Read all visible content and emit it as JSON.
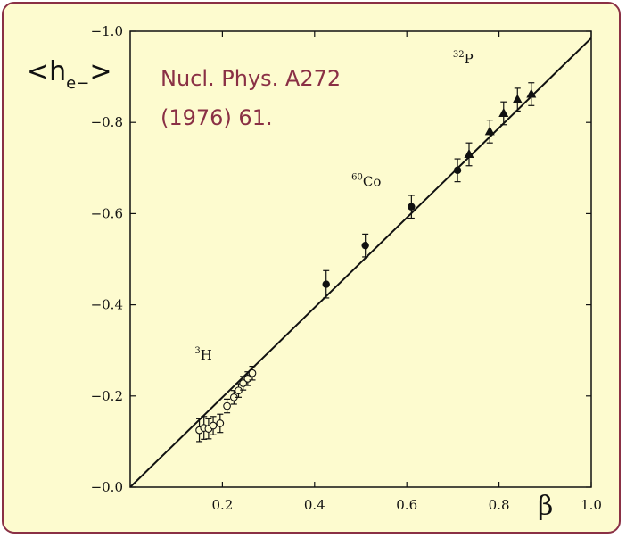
{
  "chart_data": {
    "type": "scatter",
    "xlabel": "β",
    "ylabel": {
      "main": "<h",
      "sub": "e−",
      "close": ">"
    },
    "xlim": [
      0.0,
      1.0
    ],
    "ylim": [
      0.0,
      -1.0
    ],
    "x_ticks": [
      0.2,
      0.4,
      0.6,
      0.8,
      1.0
    ],
    "x_tick_labels": [
      "0.2",
      "0.4",
      "0.6",
      "0.8",
      "1.0"
    ],
    "y_ticks": [
      0.0,
      -0.2,
      -0.4,
      -0.6,
      -0.8,
      -1.0
    ],
    "y_tick_labels": [
      "−0.0",
      "−0.2",
      "−0.4",
      "−0.6",
      "−0.8",
      "−1.0"
    ],
    "annotations": [
      {
        "text": "Nucl. Phys. A272\n(1976) 61."
      },
      {
        "sup": "3",
        "text": "H",
        "x": 0.14,
        "y": -0.28
      },
      {
        "sup": "60",
        "text": "Co",
        "x": 0.48,
        "y": -0.66
      },
      {
        "sup": "32",
        "text": "P",
        "x": 0.7,
        "y": -0.93
      }
    ],
    "fit_line": {
      "x": [
        0.0,
        1.0
      ],
      "y": [
        0.0,
        -0.985
      ]
    },
    "series": [
      {
        "marker": "open-circle",
        "points": [
          {
            "x": 0.15,
            "y": -0.125,
            "err": 0.025
          },
          {
            "x": 0.16,
            "y": -0.13,
            "err": 0.025
          },
          {
            "x": 0.17,
            "y": -0.128,
            "err": 0.022
          },
          {
            "x": 0.18,
            "y": -0.135,
            "err": 0.02
          },
          {
            "x": 0.195,
            "y": -0.14,
            "err": 0.02
          },
          {
            "x": 0.21,
            "y": -0.178,
            "err": 0.015
          },
          {
            "x": 0.225,
            "y": -0.197,
            "err": 0.015
          },
          {
            "x": 0.235,
            "y": -0.212,
            "err": 0.015
          },
          {
            "x": 0.245,
            "y": -0.228,
            "err": 0.015
          },
          {
            "x": 0.255,
            "y": -0.238,
            "err": 0.015
          },
          {
            "x": 0.265,
            "y": -0.25,
            "err": 0.015
          }
        ]
      },
      {
        "marker": "filled-circle",
        "points": [
          {
            "x": 0.425,
            "y": -0.445,
            "err": 0.03
          },
          {
            "x": 0.51,
            "y": -0.53,
            "err": 0.025
          },
          {
            "x": 0.61,
            "y": -0.615,
            "err": 0.025
          },
          {
            "x": 0.71,
            "y": -0.695,
            "err": 0.025
          }
        ]
      },
      {
        "marker": "filled-triangle",
        "points": [
          {
            "x": 0.735,
            "y": -0.73,
            "err": 0.025
          },
          {
            "x": 0.78,
            "y": -0.78,
            "err": 0.025
          },
          {
            "x": 0.81,
            "y": -0.82,
            "err": 0.025
          },
          {
            "x": 0.84,
            "y": -0.85,
            "err": 0.025
          },
          {
            "x": 0.87,
            "y": -0.862,
            "err": 0.025
          }
        ]
      }
    ]
  }
}
